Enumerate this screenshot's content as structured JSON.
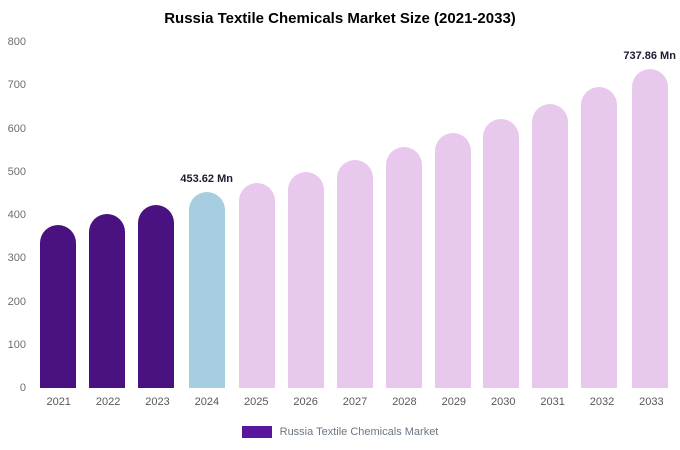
{
  "title": "Russia Textile Chemicals Market Size (2021-2033)",
  "legend": {
    "label": "Russia Textile Chemicals Market",
    "swatch_color": "#5b169e"
  },
  "colors": {
    "historical_bar": "#4a1180",
    "current_bar": "#a7cee0",
    "forecast_bar": "#e9c8ed"
  },
  "chart_data": {
    "type": "bar",
    "title": "Russia Textile Chemicals Market Size (2021-2033)",
    "categories": [
      "2021",
      "2022",
      "2023",
      "2024",
      "2025",
      "2026",
      "2027",
      "2028",
      "2029",
      "2030",
      "2031",
      "2032",
      "2033"
    ],
    "values": [
      378,
      402,
      424,
      453.62,
      474,
      500,
      528,
      558,
      590,
      622,
      656,
      695,
      737.86
    ],
    "point_labels": [
      "",
      "",
      "",
      "453.62 Mn",
      "",
      "",
      "",
      "",
      "",
      "",
      "",
      "",
      "737.86 Mn"
    ],
    "bar_colors": [
      "#4a1180",
      "#4a1180",
      "#4a1180",
      "#a7cee0",
      "#e9c8ed",
      "#e9c8ed",
      "#e9c8ed",
      "#e9c8ed",
      "#e9c8ed",
      "#e9c8ed",
      "#e9c8ed",
      "#e9c8ed",
      "#e9c8ed"
    ],
    "xlabel": "",
    "ylabel": "",
    "ylim": [
      0,
      800
    ],
    "yticks": [
      0,
      100,
      200,
      300,
      400,
      500,
      600,
      700,
      800
    ],
    "grid": false,
    "legend_position": "bottom",
    "legend_entries": [
      "Russia Textile Chemicals Market"
    ]
  }
}
